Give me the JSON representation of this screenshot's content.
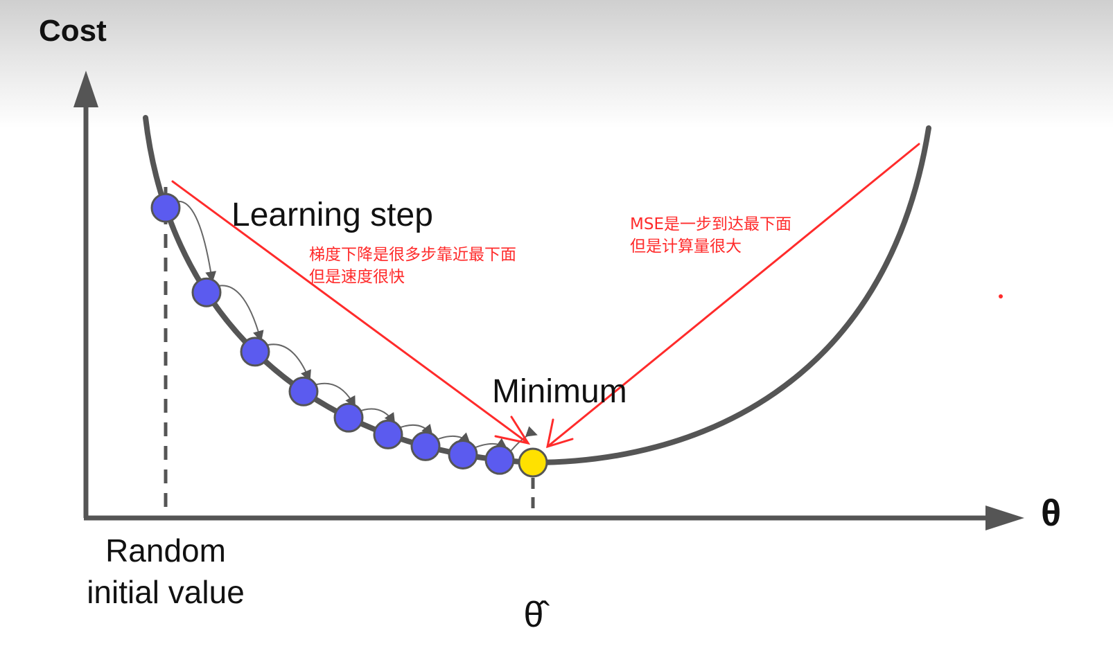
{
  "diagram": {
    "y_axis_label": "Cost",
    "x_axis_label": "θ",
    "learning_step_label": "Learning step",
    "minimum_label": "Minimum",
    "random_initial_label": [
      "Random",
      "initial value"
    ],
    "optimum_label": "θ̂",
    "step_count": 9,
    "colors": {
      "curve": "#555555",
      "axis": "#555555",
      "step_point": "#5b5bef",
      "minimum_point": "#ffe100",
      "annotation": "#ff2b2b"
    }
  },
  "annotations": {
    "gradient_descent_note": [
      "梯度下降是很多步靠近最下面",
      "但是速度很快"
    ],
    "mse_note": [
      "MSE是一步到达最下面",
      "但是计算量很大"
    ]
  }
}
